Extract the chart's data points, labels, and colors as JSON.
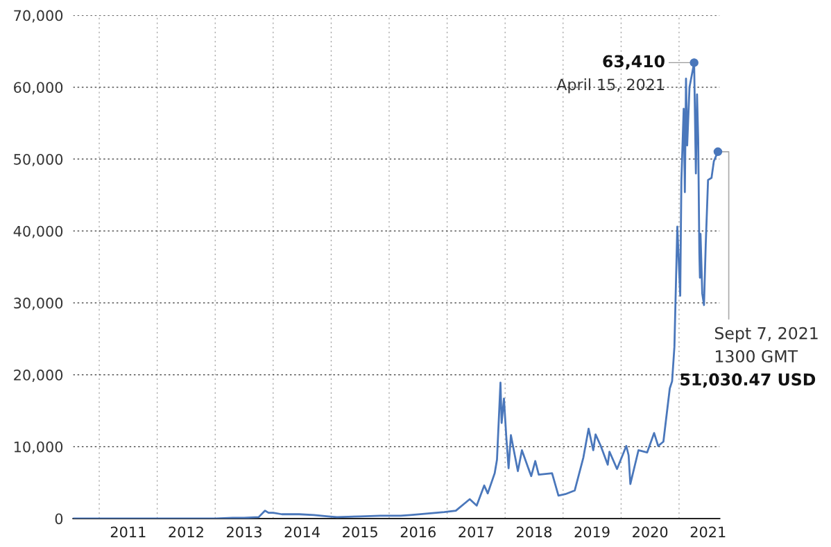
{
  "chart_data": {
    "type": "line",
    "x": [
      2010.55,
      2011.45,
      2012.0,
      2012.9,
      2013.0,
      2013.3,
      2013.5,
      2013.75,
      2013.86,
      2013.92,
      2014.0,
      2014.15,
      2014.45,
      2014.7,
      2014.95,
      2015.1,
      2015.5,
      2015.85,
      2016.2,
      2016.37,
      2016.95,
      2017.15,
      2017.39,
      2017.51,
      2017.64,
      2017.7,
      2017.82,
      2017.86,
      2017.92,
      2017.94,
      2017.98,
      2018.02,
      2018.06,
      2018.1,
      2018.22,
      2018.29,
      2018.45,
      2018.52,
      2018.58,
      2018.81,
      2018.92,
      2019.04,
      2019.2,
      2019.35,
      2019.44,
      2019.52,
      2019.56,
      2019.65,
      2019.77,
      2019.8,
      2019.93,
      2020.09,
      2020.13,
      2020.16,
      2020.3,
      2020.45,
      2020.57,
      2020.64,
      2020.73,
      2020.84,
      2020.88,
      2020.92,
      2020.97,
      2021.02,
      2021.04,
      2021.08,
      2021.1,
      2021.12,
      2021.14,
      2021.18,
      2021.26,
      2021.29,
      2021.31,
      2021.33,
      2021.35,
      2021.36,
      2021.37,
      2021.4,
      2021.43,
      2021.46,
      2021.5,
      2021.56,
      2021.6,
      2021.67
    ],
    "series": [
      {
        "color": "#4a77bb",
        "values": [
          0,
          0,
          0,
          0,
          0,
          100,
          100,
          200,
          1100,
          800,
          800,
          600,
          600,
          500,
          300,
          200,
          300,
          400,
          400,
          500,
          900,
          1100,
          2700,
          1800,
          4600,
          3500,
          6300,
          8200,
          18900,
          13300,
          16700,
          11400,
          7000,
          11600,
          6600,
          9500,
          5900,
          8000,
          6100,
          6300,
          3200,
          3400,
          3900,
          8500,
          12500,
          9500,
          11700,
          10100,
          7500,
          9300,
          6900,
          10100,
          8800,
          4800,
          9500,
          9200,
          11900,
          10100,
          10700,
          18100,
          19100,
          23900,
          40600,
          31000,
          47000,
          57000,
          45400,
          61200,
          51900,
          60000,
          63410,
          48000,
          59000,
          52800,
          37000,
          33500,
          39600,
          31300,
          29700,
          38100,
          47100,
          47400,
          49700,
          51030.47
        ]
      }
    ],
    "xlim": [
      2010.55,
      2021.7
    ],
    "xticks": [
      {
        "value": 2011,
        "label": null
      },
      {
        "value": 2011.5,
        "label": "2011"
      },
      {
        "value": 2012,
        "label": null
      },
      {
        "value": 2012.5,
        "label": "2012"
      },
      {
        "value": 2013,
        "label": null
      },
      {
        "value": 2013.5,
        "label": "2013"
      },
      {
        "value": 2014,
        "label": null
      },
      {
        "value": 2014.5,
        "label": "2014"
      },
      {
        "value": 2015,
        "label": null
      },
      {
        "value": 2015.5,
        "label": "2015"
      },
      {
        "value": 2016,
        "label": null
      },
      {
        "value": 2016.5,
        "label": "2016"
      },
      {
        "value": 2017,
        "label": null
      },
      {
        "value": 2017.5,
        "label": "2017"
      },
      {
        "value": 2018,
        "label": null
      },
      {
        "value": 2018.5,
        "label": "2018"
      },
      {
        "value": 2019,
        "label": null
      },
      {
        "value": 2019.5,
        "label": "2019"
      },
      {
        "value": 2020,
        "label": null
      },
      {
        "value": 2020.5,
        "label": "2020"
      },
      {
        "value": 2021,
        "label": null
      },
      {
        "value": 2021.5,
        "label": "2021"
      }
    ],
    "ylim": [
      0,
      70000
    ],
    "yticks": [
      0,
      {
        "value": 10000,
        "label": "10,000"
      },
      {
        "value": 20000,
        "label": "20,000"
      },
      {
        "value": 30000,
        "label": "30,000"
      },
      {
        "value": 40000,
        "label": "40,000"
      },
      {
        "value": 50000,
        "label": "50,000"
      },
      {
        "value": 60000,
        "label": "60,000"
      },
      {
        "value": 70000,
        "label": "70,000"
      }
    ],
    "grid": true,
    "annotations": [
      {
        "text": "63,410",
        "x": 2021.26,
        "y": 63410
      },
      "April 15, 2021",
      {
        "text": "Sept 7, 2021",
        "x": 2021.67,
        "y": 51030.47
      },
      "1300 GMT",
      "51,030.47 USD"
    ]
  }
}
